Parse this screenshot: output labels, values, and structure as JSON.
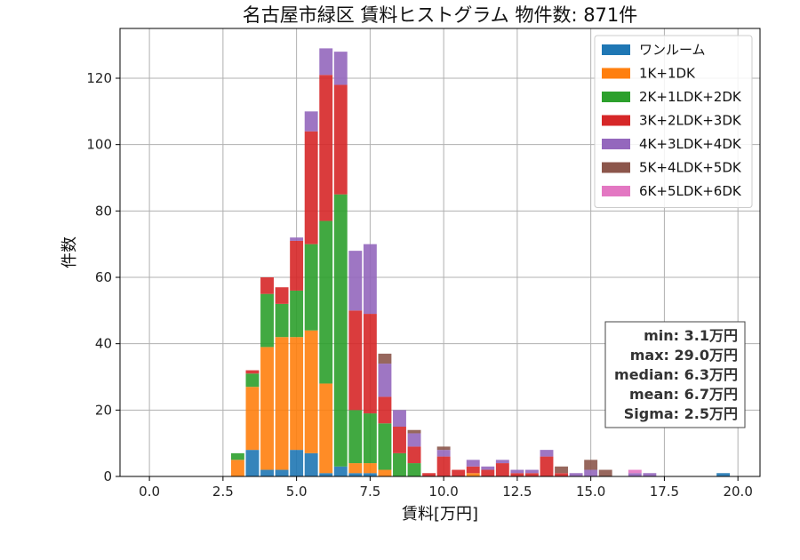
{
  "chart_data": {
    "type": "bar",
    "stacked": true,
    "title": "名古屋市緑区 賃料ヒストグラム 物件数: 871件",
    "xlabel": "賃料[万円]",
    "ylabel": "件数",
    "xlim": [
      -1.0,
      20.75
    ],
    "ylim": [
      0,
      135
    ],
    "xticks": [
      "0.0",
      "2.5",
      "5.0",
      "7.5",
      "10.0",
      "12.5",
      "15.0",
      "17.5",
      "20.0"
    ],
    "yticks": [
      "0",
      "20",
      "40",
      "60",
      "80",
      "100",
      "120"
    ],
    "grid": true,
    "legend_position": "top-right",
    "bin_width": 0.5,
    "x": [
      3.0,
      3.5,
      4.0,
      4.5,
      5.0,
      5.5,
      6.0,
      6.5,
      7.0,
      7.5,
      8.0,
      8.5,
      9.0,
      9.5,
      10.0,
      10.5,
      11.0,
      11.5,
      12.0,
      12.5,
      13.0,
      13.5,
      14.0,
      14.5,
      15.0,
      15.5,
      16.5,
      17.0,
      19.5
    ],
    "series": [
      {
        "name": "ワンルーム",
        "color": "#1f77b4",
        "values": [
          0,
          8,
          2,
          2,
          8,
          7,
          1,
          3,
          1,
          1,
          0,
          0,
          0,
          0,
          0,
          0,
          0,
          0,
          0,
          0,
          0,
          0,
          0,
          0,
          0,
          0,
          0,
          0,
          1
        ]
      },
      {
        "name": "1K+1DK",
        "color": "#ff7f0e",
        "values": [
          5,
          19,
          37,
          40,
          34,
          37,
          27,
          0,
          3,
          3,
          2,
          0,
          0,
          0,
          0,
          0,
          1,
          0,
          0,
          0,
          0,
          0,
          0,
          0,
          0,
          0,
          0,
          0,
          0
        ]
      },
      {
        "name": "2K+1LDK+2DK",
        "color": "#2ca02c",
        "values": [
          2,
          4,
          16,
          10,
          14,
          26,
          49,
          82,
          16,
          15,
          14,
          7,
          4,
          0,
          0,
          0,
          0,
          0,
          0,
          0,
          0,
          0,
          0,
          0,
          0,
          0,
          0,
          0,
          0
        ]
      },
      {
        "name": "3K+2LDK+3DK",
        "color": "#d62728",
        "values": [
          0,
          1,
          5,
          5,
          15,
          34,
          44,
          33,
          30,
          30,
          8,
          8,
          5,
          1,
          6,
          2,
          2,
          2,
          4,
          1,
          1,
          6,
          1,
          0,
          0,
          0,
          0,
          0,
          0
        ]
      },
      {
        "name": "4K+3LDK+4DK",
        "color": "#9467bd",
        "values": [
          0,
          0,
          0,
          0,
          1,
          6,
          8,
          10,
          18,
          21,
          10,
          5,
          4,
          0,
          2,
          0,
          2,
          1,
          1,
          1,
          1,
          2,
          0,
          1,
          2,
          0,
          1,
          1,
          0
        ]
      },
      {
        "name": "5K+4LDK+5DK",
        "color": "#8c564b",
        "values": [
          0,
          0,
          0,
          0,
          0,
          0,
          0,
          0,
          0,
          0,
          3,
          0,
          1,
          0,
          1,
          0,
          0,
          0,
          0,
          0,
          0,
          0,
          2,
          0,
          3,
          2,
          0,
          0,
          0
        ]
      },
      {
        "name": "6K+5LDK+6DK",
        "color": "#e377c2",
        "values": [
          0,
          0,
          0,
          0,
          0,
          0,
          0,
          0,
          0,
          0,
          0,
          0,
          0,
          0,
          0,
          0,
          0,
          0,
          0,
          0,
          0,
          0,
          0,
          0,
          0,
          0,
          1,
          0,
          0
        ]
      }
    ],
    "stats": [
      "min: 3.1万円",
      "max: 29.0万円",
      "median: 6.3万円",
      "mean: 6.7万円",
      "Sigma: 2.5万円"
    ]
  }
}
